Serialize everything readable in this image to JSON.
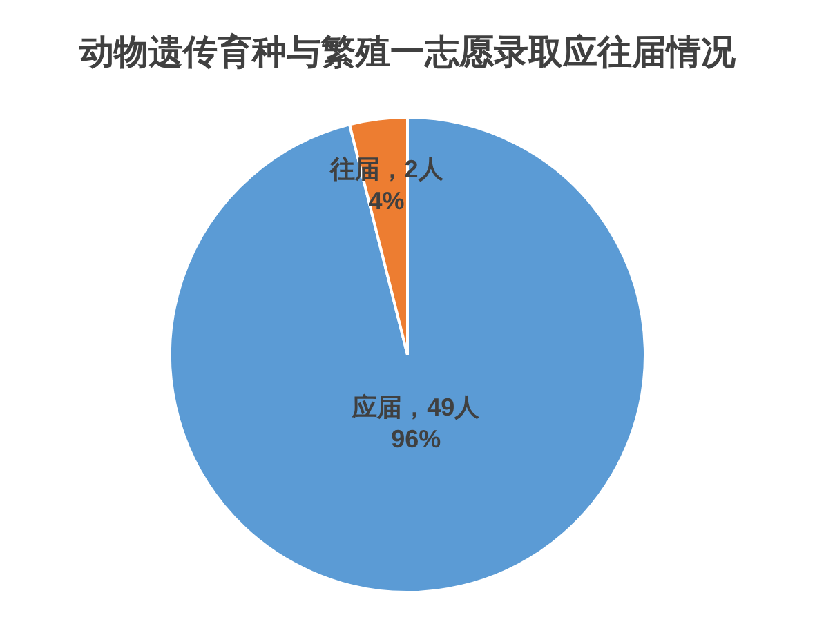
{
  "chart_data": {
    "type": "pie",
    "title": "动物遗传育种与繁殖一志愿录取应往届情况",
    "categories": [
      "应届",
      "往届"
    ],
    "values": [
      49,
      2
    ],
    "colors": [
      "#5b9bd5",
      "#ed7d31"
    ],
    "value_labels": [
      "49人\n96%",
      "2人\n4%"
    ]
  }
}
